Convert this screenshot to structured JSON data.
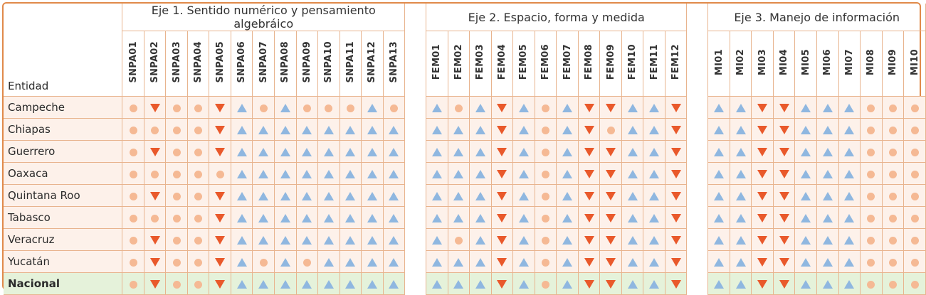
{
  "header": {
    "entity_label": "Entidad",
    "axes": [
      {
        "title": "Eje 1. Sentido numérico y pensamiento algebráico",
        "codes": [
          "SNPA01",
          "SNPA02",
          "SNPA03",
          "SNPA04",
          "SNPA05",
          "SNPA06",
          "SNPA07",
          "SNPA08",
          "SNPA09",
          "SNPA10",
          "SNPA11",
          "SNPA12",
          "SNPA13"
        ]
      },
      {
        "title": "Eje 2. Espacio, forma y medida",
        "codes": [
          "FEM01",
          "FEM02",
          "FEM03",
          "FEM04",
          "FEM05",
          "FEM06",
          "FEM07",
          "FEM08",
          "FEM09",
          "FEM10",
          "FEM11",
          "FEM12"
        ]
      },
      {
        "title": "Eje 3. Manejo de información",
        "codes": [
          "MI01",
          "MI02",
          "MI03",
          "MI04",
          "MI05",
          "MI06",
          "MI07",
          "MI08",
          "MI09",
          "MI10"
        ]
      }
    ]
  },
  "legend_colors": {
    "up": "#8fb7e0",
    "down": "#e9592b",
    "circle": "#f5b994"
  },
  "rows": [
    {
      "entity": "Campeche",
      "values": [
        [
          "circle",
          "down",
          "circle",
          "circle",
          "down",
          "up",
          "circle",
          "up",
          "circle",
          "circle",
          "circle",
          "up",
          "circle"
        ],
        [
          "up",
          "circle",
          "up",
          "down",
          "up",
          "circle",
          "up",
          "down",
          "down",
          "up",
          "up",
          "down"
        ],
        [
          "up",
          "up",
          "down",
          "down",
          "up",
          "up",
          "up",
          "circle",
          "circle",
          "circle"
        ]
      ]
    },
    {
      "entity": "Chiapas",
      "values": [
        [
          "circle",
          "circle",
          "circle",
          "circle",
          "down",
          "up",
          "up",
          "up",
          "up",
          "up",
          "up",
          "up",
          "up"
        ],
        [
          "up",
          "up",
          "up",
          "down",
          "up",
          "circle",
          "up",
          "down",
          "circle",
          "up",
          "up",
          "down"
        ],
        [
          "up",
          "up",
          "down",
          "down",
          "up",
          "up",
          "up",
          "circle",
          "circle",
          "circle"
        ]
      ]
    },
    {
      "entity": "Guerrero",
      "values": [
        [
          "circle",
          "down",
          "circle",
          "circle",
          "down",
          "up",
          "up",
          "up",
          "up",
          "up",
          "up",
          "up",
          "up"
        ],
        [
          "up",
          "up",
          "up",
          "down",
          "up",
          "circle",
          "up",
          "down",
          "down",
          "up",
          "up",
          "down"
        ],
        [
          "up",
          "up",
          "down",
          "down",
          "up",
          "up",
          "up",
          "circle",
          "circle",
          "circle"
        ]
      ]
    },
    {
      "entity": "Oaxaca",
      "values": [
        [
          "circle",
          "circle",
          "circle",
          "circle",
          "circle",
          "up",
          "up",
          "up",
          "up",
          "up",
          "up",
          "up",
          "up"
        ],
        [
          "up",
          "up",
          "up",
          "down",
          "up",
          "circle",
          "up",
          "down",
          "down",
          "up",
          "up",
          "down"
        ],
        [
          "up",
          "up",
          "down",
          "down",
          "up",
          "up",
          "up",
          "circle",
          "circle",
          "circle"
        ]
      ]
    },
    {
      "entity": "Quintana Roo",
      "values": [
        [
          "circle",
          "down",
          "circle",
          "circle",
          "down",
          "up",
          "up",
          "up",
          "up",
          "up",
          "up",
          "up",
          "up"
        ],
        [
          "up",
          "up",
          "up",
          "down",
          "up",
          "circle",
          "up",
          "down",
          "down",
          "up",
          "up",
          "down"
        ],
        [
          "up",
          "up",
          "down",
          "down",
          "up",
          "up",
          "up",
          "circle",
          "circle",
          "circle"
        ]
      ]
    },
    {
      "entity": "Tabasco",
      "values": [
        [
          "circle",
          "circle",
          "circle",
          "circle",
          "down",
          "up",
          "up",
          "up",
          "up",
          "up",
          "up",
          "up",
          "up"
        ],
        [
          "up",
          "up",
          "up",
          "down",
          "up",
          "circle",
          "up",
          "down",
          "down",
          "up",
          "up",
          "down"
        ],
        [
          "up",
          "up",
          "down",
          "down",
          "up",
          "up",
          "up",
          "circle",
          "circle",
          "circle"
        ]
      ]
    },
    {
      "entity": "Veracruz",
      "values": [
        [
          "circle",
          "down",
          "circle",
          "circle",
          "down",
          "up",
          "up",
          "up",
          "up",
          "up",
          "up",
          "up",
          "up"
        ],
        [
          "up",
          "circle",
          "up",
          "down",
          "up",
          "circle",
          "up",
          "down",
          "down",
          "up",
          "up",
          "down"
        ],
        [
          "up",
          "up",
          "down",
          "down",
          "up",
          "up",
          "up",
          "circle",
          "circle",
          "circle"
        ]
      ]
    },
    {
      "entity": "Yucatán",
      "values": [
        [
          "circle",
          "down",
          "circle",
          "circle",
          "down",
          "up",
          "circle",
          "up",
          "circle",
          "up",
          "up",
          "up",
          "up"
        ],
        [
          "up",
          "up",
          "up",
          "down",
          "up",
          "circle",
          "up",
          "down",
          "down",
          "up",
          "up",
          "down"
        ],
        [
          "up",
          "up",
          "down",
          "down",
          "up",
          "up",
          "up",
          "circle",
          "circle",
          "circle"
        ]
      ]
    },
    {
      "entity": "Nacional",
      "national": true,
      "values": [
        [
          "circle",
          "down",
          "circle",
          "circle",
          "down",
          "up",
          "up",
          "up",
          "up",
          "up",
          "up",
          "up",
          "up"
        ],
        [
          "up",
          "up",
          "up",
          "down",
          "up",
          "circle",
          "up",
          "down",
          "down",
          "up",
          "up",
          "down"
        ],
        [
          "up",
          "up",
          "down",
          "down",
          "up",
          "up",
          "up",
          "circle",
          "circle",
          "circle"
        ]
      ]
    }
  ]
}
